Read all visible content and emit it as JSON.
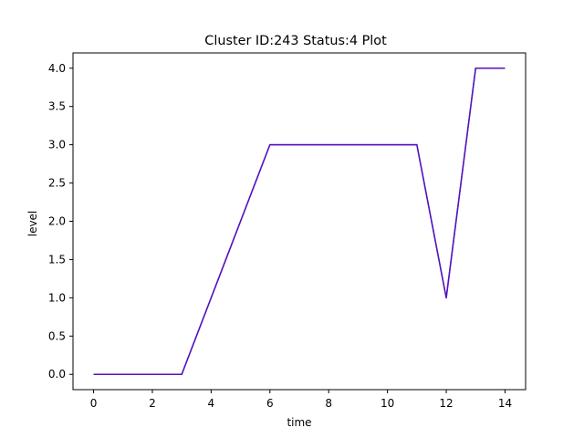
{
  "chart_data": {
    "type": "line",
    "title": "Cluster ID:243 Status:4 Plot",
    "xlabel": "time",
    "ylabel": "level",
    "xlim": [
      -0.7,
      14.7
    ],
    "ylim": [
      -0.2,
      4.2
    ],
    "xticks": [
      0,
      2,
      4,
      6,
      8,
      10,
      12,
      14
    ],
    "yticks": [
      0.0,
      0.5,
      1.0,
      1.5,
      2.0,
      2.5,
      3.0,
      3.5,
      4.0
    ],
    "xtick_labels": [
      "0",
      "2",
      "4",
      "6",
      "8",
      "10",
      "12",
      "14"
    ],
    "ytick_labels": [
      "0.0",
      "0.5",
      "1.0",
      "1.5",
      "2.0",
      "2.5",
      "3.0",
      "3.5",
      "4.0"
    ],
    "grid": false,
    "legend": false,
    "series": [
      {
        "color": "#1f77b4",
        "x": [
          0,
          1,
          2,
          3,
          4,
          5,
          6,
          7,
          8,
          9,
          10,
          11,
          12,
          13,
          14
        ],
        "y": [
          0,
          0,
          0,
          0,
          1,
          2,
          3,
          3,
          3,
          3,
          3,
          3,
          1,
          4,
          4
        ]
      },
      {
        "color": "#5c0fbf",
        "x": [
          0,
          1,
          2,
          3,
          4,
          5,
          6,
          7,
          8,
          9,
          10,
          11,
          12,
          13,
          14
        ],
        "y": [
          0,
          0,
          0,
          0,
          1,
          2,
          3,
          3,
          3,
          3,
          3,
          3,
          1,
          4,
          4
        ]
      }
    ]
  }
}
